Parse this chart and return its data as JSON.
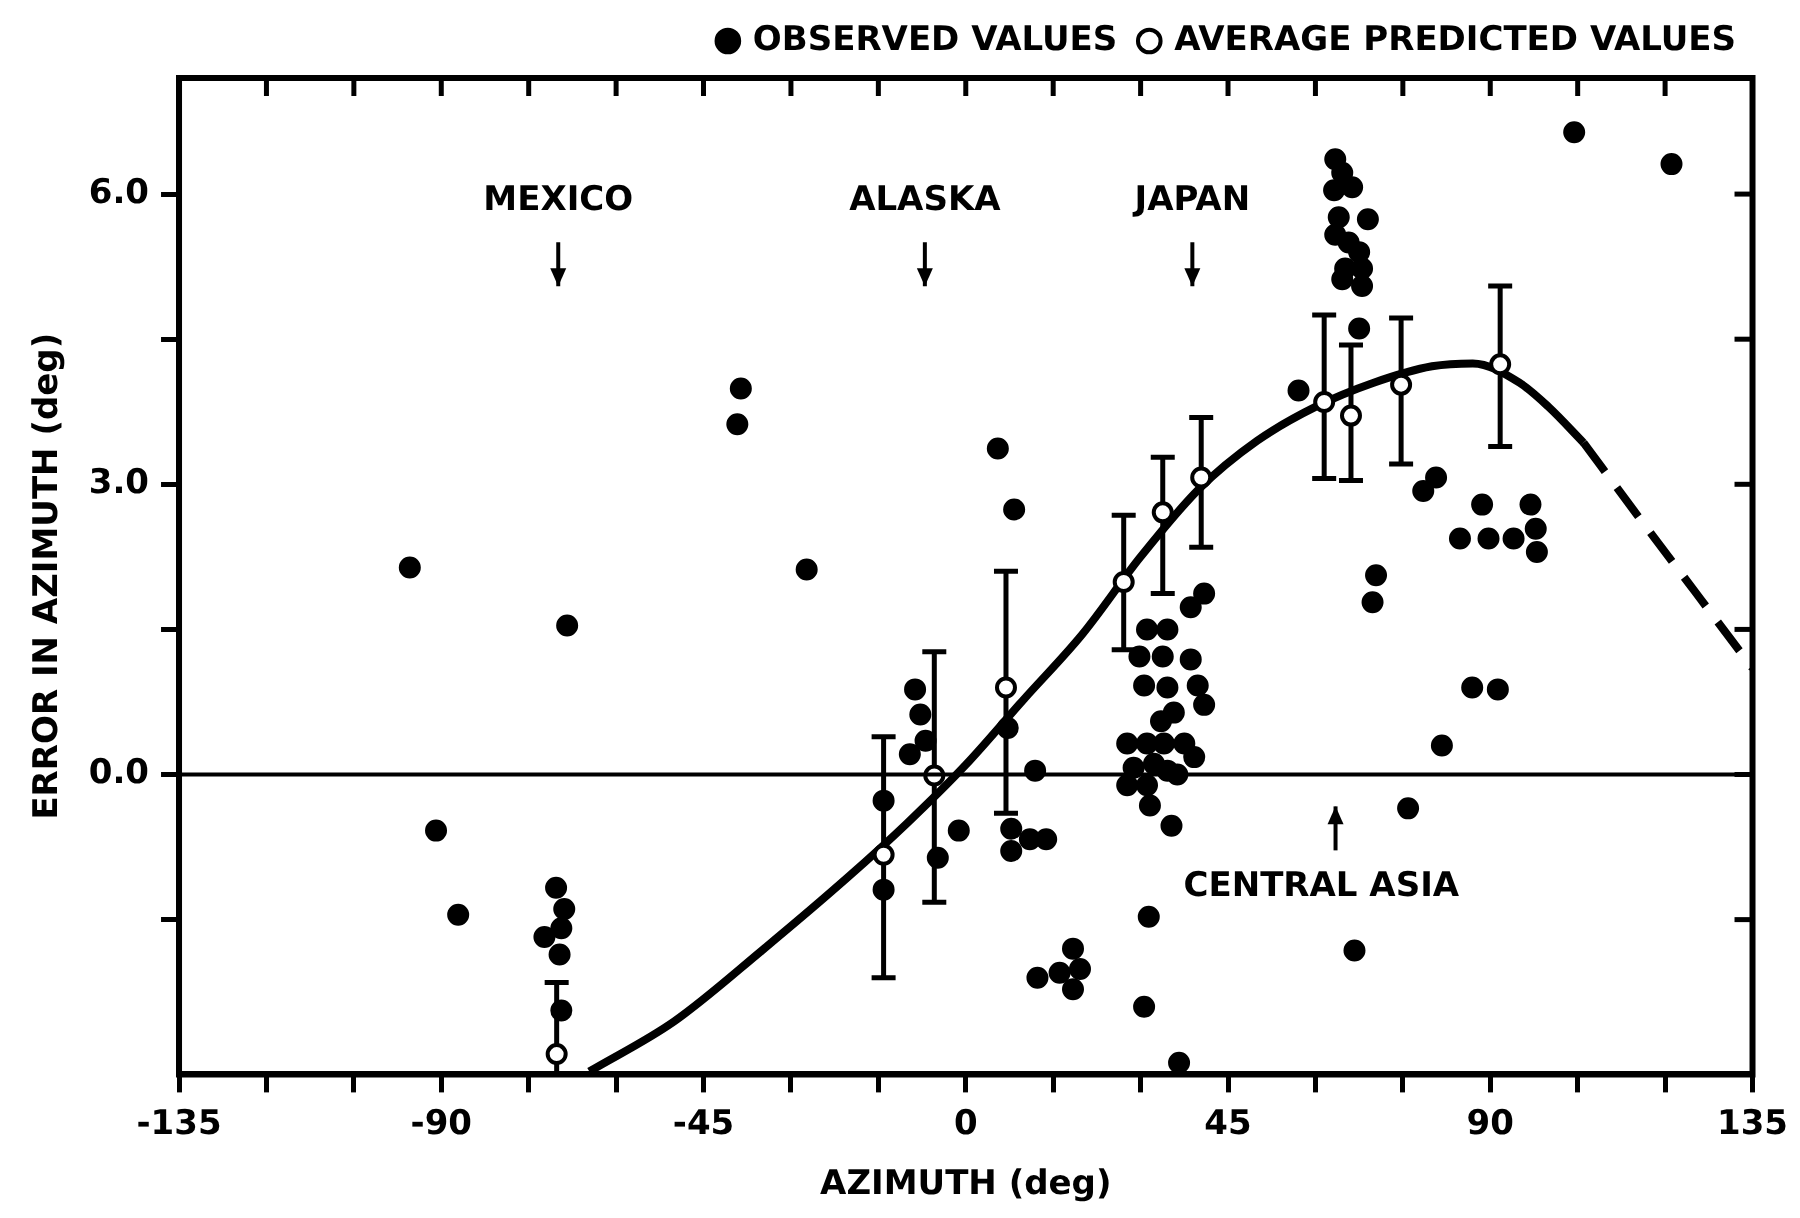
{
  "chart_data": {
    "type": "scatter",
    "xlabel": "AZIMUTH (deg)",
    "ylabel": "ERROR IN AZIMUTH (deg)",
    "xlim": [
      -135,
      135
    ],
    "xticks": [
      -135,
      {
        "value": -120,
        "label": null
      },
      {
        "value": -105,
        "label": null
      },
      -90,
      {
        "value": -75,
        "label": null
      },
      {
        "value": -60,
        "label": null
      },
      -45,
      {
        "value": -30,
        "label": null
      },
      {
        "value": -15,
        "label": null
      },
      0,
      {
        "value": 15,
        "label": null
      },
      {
        "value": 30,
        "label": null
      },
      45,
      {
        "value": 60,
        "label": null
      },
      {
        "value": 75,
        "label": null
      },
      90,
      {
        "value": 105,
        "label": null
      },
      {
        "value": 120,
        "label": null
      },
      135
    ],
    "ylim": [
      -3.1,
      7.2
    ],
    "yticks": [
      {
        "value": -1.5,
        "label": null
      },
      {
        "value": 0,
        "label": "0.0"
      },
      {
        "value": 1.5,
        "label": null
      },
      {
        "value": 3,
        "label": "3.0"
      },
      {
        "value": 4.5,
        "label": null
      },
      {
        "value": 6,
        "label": "6.0"
      }
    ],
    "grid": false,
    "legend": "top",
    "ref_lines": [
      {
        "axis": "y",
        "value": 0,
        "color": "#000000"
      }
    ],
    "annotations": [
      "MEXICO",
      "ALASKA",
      "JAPAN",
      "CENTRAL ASIA"
    ],
    "series": [
      {
        "name": "OBSERVED VALUES",
        "marker": "circle",
        "color": "#000000",
        "x": [
          -95.4,
          -68.4,
          -38.6,
          -39.2,
          -90.9,
          -87.1,
          -70.3,
          -68.9,
          -69.4,
          -72.3,
          -69.7,
          -69.4,
          -27.3,
          5.5,
          8.3,
          -14.1,
          -14.1,
          -8.7,
          -7.8,
          -6.9,
          -9.6,
          -4.8,
          -1.2,
          7.2,
          11.9,
          7.8,
          11,
          13.8,
          7.8,
          18.4,
          16.1,
          19.6,
          18.4,
          12.3,
          31.4,
          30.6,
          36.6,
          31.1,
          34.6,
          29.8,
          33.8,
          38.6,
          30.6,
          34.6,
          39.8,
          40.9,
          35.7,
          33.5,
          40.9,
          38.6,
          27.7,
          31.1,
          34.0,
          37.5,
          39.2,
          28.8,
          32.3,
          34.6,
          27.7,
          31.1,
          36.3,
          31.6,
          35.3,
          57.1,
          63.4,
          64.6,
          63.2,
          66.3,
          69.0,
          64.0,
          63.4,
          65.7,
          67.5,
          65.1,
          68.0,
          64.6,
          68.0,
          67.5,
          70.4,
          69.8,
          66.7,
          104.4,
          121.1,
          80.7,
          78.5,
          88.6,
          84.8,
          89.7,
          94.0,
          96.9,
          97.8,
          98.0,
          86.9,
          91.3,
          81.7,
          75.9
        ],
        "values": [
          2.14,
          1.54,
          3.99,
          3.62,
          -0.58,
          -1.45,
          -1.17,
          -1.39,
          -1.59,
          -1.68,
          -1.86,
          -2.44,
          2.12,
          3.37,
          2.74,
          -0.27,
          -1.19,
          0.88,
          0.62,
          0.35,
          0.21,
          -0.86,
          -0.58,
          0.48,
          0.04,
          -0.56,
          -0.67,
          -0.67,
          -0.79,
          -1.8,
          -2.05,
          -2.01,
          -2.22,
          -2.1,
          -1.47,
          -2.4,
          -2.98,
          1.5,
          1.5,
          1.22,
          1.22,
          1.19,
          0.92,
          0.9,
          0.92,
          0.72,
          0.64,
          0.55,
          1.87,
          1.73,
          0.32,
          0.32,
          0.32,
          0.32,
          0.18,
          0.07,
          0.11,
          0.04,
          -0.11,
          -0.11,
          0.0,
          -0.32,
          -0.53,
          3.97,
          6.36,
          6.22,
          6.04,
          6.07,
          5.74,
          5.76,
          5.58,
          5.5,
          5.4,
          5.23,
          5.23,
          5.12,
          5.05,
          4.61,
          2.06,
          1.78,
          -1.82,
          6.64,
          6.31,
          3.07,
          2.93,
          2.79,
          2.44,
          2.44,
          2.44,
          2.79,
          2.54,
          2.3,
          0.9,
          0.88,
          0.3,
          -0.35
        ]
      },
      {
        "name": "AVERAGE PREDICTED VALUES",
        "marker": "circle",
        "color": "#ffffff",
        "x": [
          -70.2,
          -14.1,
          -5.4,
          6.9,
          27.1,
          33.8,
          40.4,
          61.5,
          66.1,
          74.7,
          91.7
        ],
        "values": [
          -2.89,
          -0.83,
          -0.01,
          0.9,
          1.99,
          2.71,
          3.07,
          3.85,
          3.71,
          4.03,
          4.24
        ],
        "errors": [
          [
            -3.1,
            -2.15
          ],
          [
            -2.1,
            0.39
          ],
          [
            -1.32,
            1.27
          ],
          [
            -0.4,
            2.1
          ],
          [
            1.29,
            2.68
          ],
          [
            1.87,
            3.28
          ],
          [
            2.35,
            3.69
          ],
          [
            3.06,
            4.75
          ],
          [
            3.04,
            4.44
          ],
          [
            3.21,
            4.72
          ],
          [
            3.39,
            5.05
          ]
        ]
      },
      {
        "type": "line",
        "line_style": "solid",
        "marker": "none",
        "color": "#000000",
        "x": [
          -64.6,
          -50,
          -35,
          -20,
          -10,
          0,
          10,
          20,
          30,
          40,
          50,
          60,
          70,
          80,
          87,
          95,
          100,
          106
        ],
        "values": [
          -3.07,
          -2.55,
          -1.82,
          -1.05,
          -0.5,
          0.1,
          0.78,
          1.45,
          2.25,
          2.95,
          3.45,
          3.8,
          4.05,
          4.22,
          4.25,
          4.05,
          3.8,
          3.43
        ]
      },
      {
        "type": "line",
        "line_style": "dashed",
        "marker": "none",
        "color": "#000000",
        "x": [
          106,
          115,
          125,
          135
        ],
        "values": [
          3.43,
          2.7,
          1.9,
          1.1
        ]
      }
    ]
  }
}
